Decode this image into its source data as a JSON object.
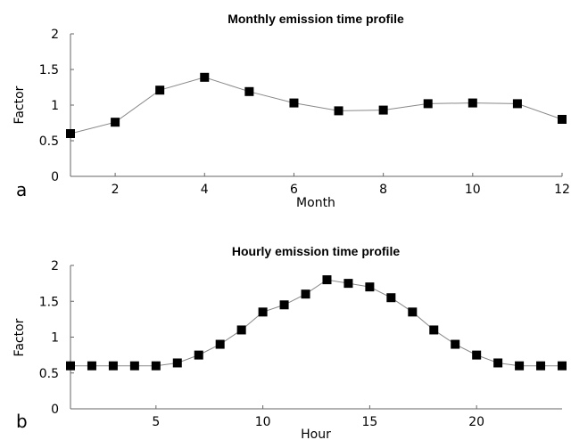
{
  "chart_data": [
    {
      "type": "line",
      "title": "Monthly emission time profile",
      "xlabel": "Month",
      "ylabel": "Factor",
      "panel_label": "a",
      "xlim": [
        1,
        12
      ],
      "ylim": [
        0,
        2
      ],
      "xticks": [
        2,
        4,
        6,
        8,
        10,
        12
      ],
      "yticks": [
        "0",
        "0.5",
        "1",
        "1.5",
        "2"
      ],
      "grid": false,
      "x": [
        1,
        2,
        3,
        4,
        5,
        6,
        7,
        8,
        9,
        10,
        11,
        12
      ],
      "series": [
        {
          "values": [
            0.6,
            0.76,
            1.21,
            1.39,
            1.19,
            1.03,
            0.92,
            0.93,
            1.02,
            1.03,
            1.02,
            0.8
          ]
        }
      ]
    },
    {
      "type": "line",
      "title": "Hourly emission time profile",
      "xlabel": "Hour",
      "ylabel": "Factor",
      "panel_label": "b",
      "xlim": [
        1,
        24
      ],
      "ylim": [
        0,
        2
      ],
      "xticks": [
        5,
        10,
        15,
        20
      ],
      "yticks": [
        "0",
        "0.5",
        "1",
        "1.5",
        "2"
      ],
      "grid": false,
      "x": [
        1,
        2,
        3,
        4,
        5,
        6,
        7,
        8,
        9,
        10,
        11,
        12,
        13,
        14,
        15,
        16,
        17,
        18,
        19,
        20,
        21,
        22,
        23,
        24
      ],
      "series": [
        {
          "values": [
            0.6,
            0.6,
            0.6,
            0.6,
            0.6,
            0.64,
            0.75,
            0.9,
            1.1,
            1.35,
            1.45,
            1.6,
            1.8,
            1.75,
            1.7,
            1.55,
            1.35,
            1.1,
            0.9,
            0.75,
            0.64,
            0.6,
            0.6,
            0.6
          ]
        }
      ]
    }
  ]
}
